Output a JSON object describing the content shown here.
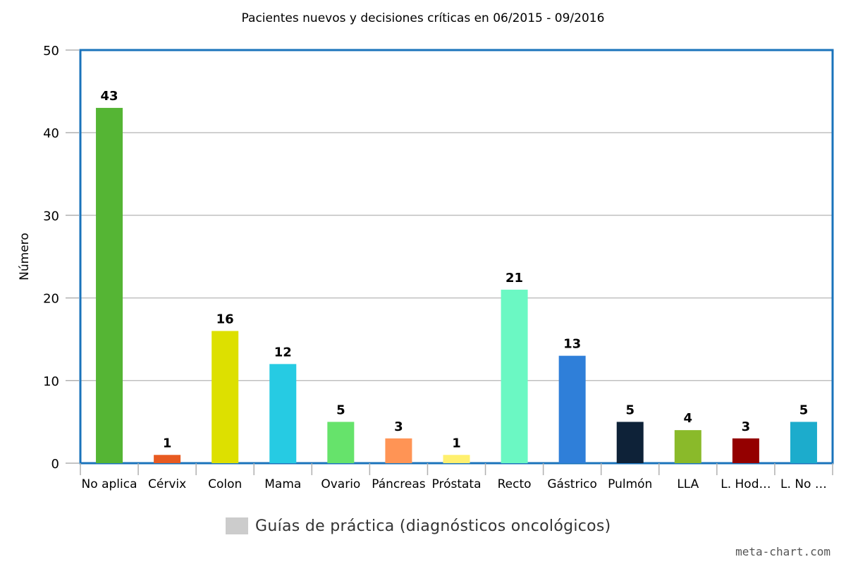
{
  "chart_data": {
    "type": "bar",
    "title": "Pacientes nuevos y decisiones críticas en 06/2015 - 09/2016",
    "ylabel": "Número",
    "xlabel": "",
    "ylim": [
      0,
      50
    ],
    "yticks": [
      0,
      10,
      20,
      30,
      40,
      50
    ],
    "grid": true,
    "legend_position": "bottom",
    "categories": [
      "No aplica",
      "Cérvix",
      "Colon",
      "Mama",
      "Ovario",
      "Páncreas",
      "Próstata",
      "Recto",
      "Gástrico",
      "Pulmón",
      "LLA",
      "L. Hod…",
      "L. No …"
    ],
    "values": [
      43,
      1,
      16,
      12,
      5,
      3,
      1,
      21,
      13,
      5,
      4,
      3,
      5
    ],
    "colors": [
      "#55b534",
      "#e85a21",
      "#dde000",
      "#26cbe3",
      "#66e36b",
      "#ff9455",
      "#fff06e",
      "#6bf8c3",
      "#2f7fd9",
      "#0e2238",
      "#8aba2a",
      "#940000",
      "#1caccc"
    ],
    "series": [
      {
        "name": "Guías de práctica (diagnósticos oncológicos)",
        "values": [
          43,
          1,
          16,
          12,
          5,
          3,
          1,
          21,
          13,
          5,
          4,
          3,
          5
        ]
      }
    ]
  },
  "legend": {
    "label": "Guías de práctica (diagnósticos oncológicos)",
    "color": "#cccccc"
  },
  "watermark": "meta-chart.com",
  "frame_color": "#1a73bb"
}
